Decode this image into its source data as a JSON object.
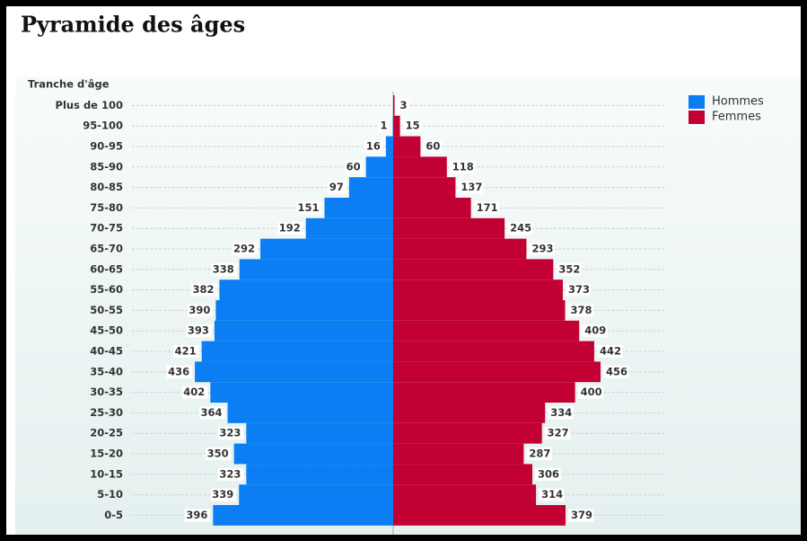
{
  "chart_data": {
    "type": "pyramid",
    "title": "Pyramide des âges",
    "y_label": "Tranche d'âge",
    "categories": [
      "Plus de 100",
      "95-100",
      "90-95",
      "85-90",
      "80-85",
      "75-80",
      "70-75",
      "65-70",
      "60-65",
      "55-60",
      "50-55",
      "45-50",
      "40-45",
      "35-40",
      "30-35",
      "25-30",
      "20-25",
      "15-20",
      "10-15",
      "5-10",
      "0-5"
    ],
    "series": [
      {
        "name": "Hommes",
        "color": "#0a7ef2",
        "values": [
          null,
          1,
          16,
          60,
          97,
          151,
          192,
          292,
          338,
          382,
          390,
          393,
          421,
          436,
          402,
          364,
          323,
          350,
          323,
          339,
          396
        ]
      },
      {
        "name": "Femmes",
        "color": "#c20033",
        "values": [
          3,
          15,
          60,
          118,
          137,
          171,
          245,
          293,
          352,
          373,
          378,
          409,
          442,
          456,
          400,
          334,
          327,
          287,
          306,
          314,
          379
        ]
      }
    ],
    "xlim": [
      -600,
      600
    ],
    "grid": true,
    "legend": "top-right"
  }
}
